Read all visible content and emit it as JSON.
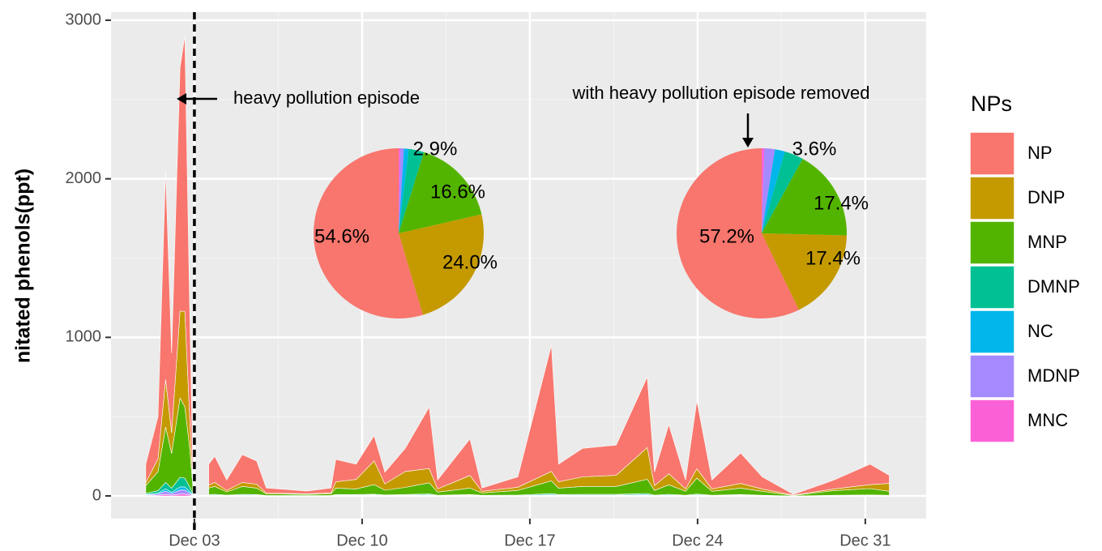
{
  "chart_data": [
    {
      "type": "area",
      "y_label": "nitated phenols(ppt)",
      "legend_title": "NPs",
      "legend_position": "right",
      "grid": true,
      "annotations": [
        "heavy pollution episode",
        "with heavy pollution episode removed"
      ],
      "reference_line_x": 3,
      "xlim": [
        -0.48,
        33.54
      ],
      "xticks": [
        {
          "value": 3,
          "label": "Dec 03"
        },
        {
          "value": 10,
          "label": "Dec 10"
        },
        {
          "value": 17,
          "label": "Dec 17"
        },
        {
          "value": 24,
          "label": "Dec 24"
        },
        {
          "value": 31,
          "label": "Dec 31"
        }
      ],
      "ylim": [
        -143,
        3051
      ],
      "yticks": [
        0,
        1000,
        2000,
        3000
      ],
      "x": [
        0.97,
        1.48,
        1.8,
        2.05,
        2.4,
        2.6,
        2.8,
        2.93,
        3.25,
        3.6,
        3.85,
        4.35,
        5.0,
        5.6,
        6.0,
        7.7,
        8.7,
        8.9,
        9.75,
        10.5,
        10.95,
        11.8,
        12.8,
        13.15,
        14.5,
        15.0,
        16.5,
        17.9,
        18.2,
        19.2,
        20.6,
        21.9,
        22.2,
        22.8,
        23.5,
        23.97,
        24.6,
        25.8,
        26.7,
        28.0,
        29.7,
        31.2,
        32.0
      ],
      "series": [
        {
          "name": "NP",
          "color": "#F8766D",
          "values": [
            115,
            267,
            1315,
            502,
            1533,
            1738,
            692,
            94,
            null,
            131,
            165,
            65,
            175,
            146,
            32,
            16,
            31,
            141,
            96,
            159,
            74,
            146,
            387,
            56,
            231,
            21,
            65,
            795,
            111,
            180,
            190,
            445,
            85,
            310,
            56,
            428,
            56,
            191,
            76,
            5,
            56,
            129,
            51
          ]
        },
        {
          "name": "DNP",
          "color": "#C49A00",
          "values": [
            20,
            80,
            300,
            130,
            550,
            600,
            200,
            30,
            null,
            20,
            25,
            10,
            25,
            25,
            5,
            4,
            6,
            40,
            60,
            150,
            40,
            100,
            90,
            20,
            80,
            10,
            20,
            60,
            40,
            60,
            70,
            200,
            30,
            70,
            15,
            60,
            15,
            30,
            15,
            2,
            10,
            25,
            50
          ]
        },
        {
          "name": "MNP",
          "color": "#53B400",
          "values": [
            50,
            120,
            350,
            220,
            500,
            450,
            250,
            60,
            null,
            40,
            50,
            20,
            50,
            40,
            10,
            8,
            10,
            40,
            35,
            60,
            30,
            45,
            70,
            20,
            40,
            15,
            30,
            80,
            40,
            50,
            50,
            90,
            30,
            60,
            25,
            100,
            25,
            40,
            25,
            3,
            30,
            40,
            25
          ]
        },
        {
          "name": "DMNP",
          "color": "#00C094",
          "values": [
            6,
            15,
            40,
            25,
            60,
            55,
            30,
            8,
            null,
            4,
            5,
            2,
            5,
            4,
            1,
            1,
            1,
            4,
            4,
            5,
            3,
            4,
            6,
            2,
            4,
            2,
            3,
            8,
            4,
            5,
            5,
            8,
            3,
            5,
            2,
            6,
            2,
            4,
            2,
            0,
            2,
            3,
            2
          ]
        },
        {
          "name": "NC",
          "color": "#00B6EB",
          "values": [
            3,
            6,
            15,
            8,
            20,
            20,
            10,
            3,
            null,
            2,
            2,
            1,
            2,
            2,
            1,
            0,
            1,
            2,
            2,
            2,
            1,
            2,
            3,
            1,
            2,
            1,
            1,
            3,
            2,
            2,
            2,
            3,
            1,
            2,
            1,
            2,
            1,
            2,
            1,
            0,
            1,
            1,
            1
          ]
        },
        {
          "name": "MDNP",
          "color": "#A58AFF",
          "values": [
            4,
            8,
            20,
            10,
            25,
            25,
            12,
            3,
            null,
            2,
            2,
            1,
            2,
            2,
            1,
            1,
            1,
            2,
            2,
            3,
            1,
            2,
            3,
            1,
            2,
            1,
            1,
            3,
            2,
            2,
            2,
            3,
            1,
            2,
            1,
            3,
            1,
            2,
            1,
            0,
            1,
            1,
            1
          ]
        },
        {
          "name": "MNC",
          "color": "#FB61D7",
          "values": [
            2,
            4,
            10,
            5,
            12,
            12,
            6,
            2,
            null,
            1,
            1,
            1,
            1,
            1,
            0,
            0,
            0,
            1,
            1,
            1,
            1,
            1,
            1,
            0,
            1,
            0,
            0,
            1,
            1,
            1,
            1,
            1,
            0,
            1,
            0,
            1,
            0,
            1,
            0,
            0,
            0,
            1,
            0
          ]
        }
      ]
    },
    {
      "type": "pie",
      "categories": [
        "NP",
        "DNP",
        "MNP",
        "DMNP",
        "NC",
        "MDNP",
        "MNC"
      ],
      "colors": [
        "#F8766D",
        "#C49A00",
        "#53B400",
        "#00C094",
        "#00B6EB",
        "#A58AFF",
        "#FB61D7"
      ],
      "values": [
        54.6,
        24.0,
        16.6,
        2.9,
        0.9,
        0.7,
        0.3
      ],
      "value_labels": [
        "54.6%",
        "24.0%",
        "16.6%",
        "2.9%",
        null,
        null,
        null
      ]
    },
    {
      "type": "pie",
      "categories": [
        "NP",
        "DNP",
        "MNP",
        "DMNP",
        "NC",
        "MDNP",
        "MNC"
      ],
      "colors": [
        "#F8766D",
        "#C49A00",
        "#53B400",
        "#00C094",
        "#00B6EB",
        "#A58AFF",
        "#FB61D7"
      ],
      "values": [
        57.2,
        17.4,
        17.4,
        3.6,
        1.9,
        2.0,
        0.5
      ],
      "value_labels": [
        "57.2%",
        "17.4%",
        "17.4%",
        "3.6%",
        null,
        null,
        null
      ]
    }
  ]
}
